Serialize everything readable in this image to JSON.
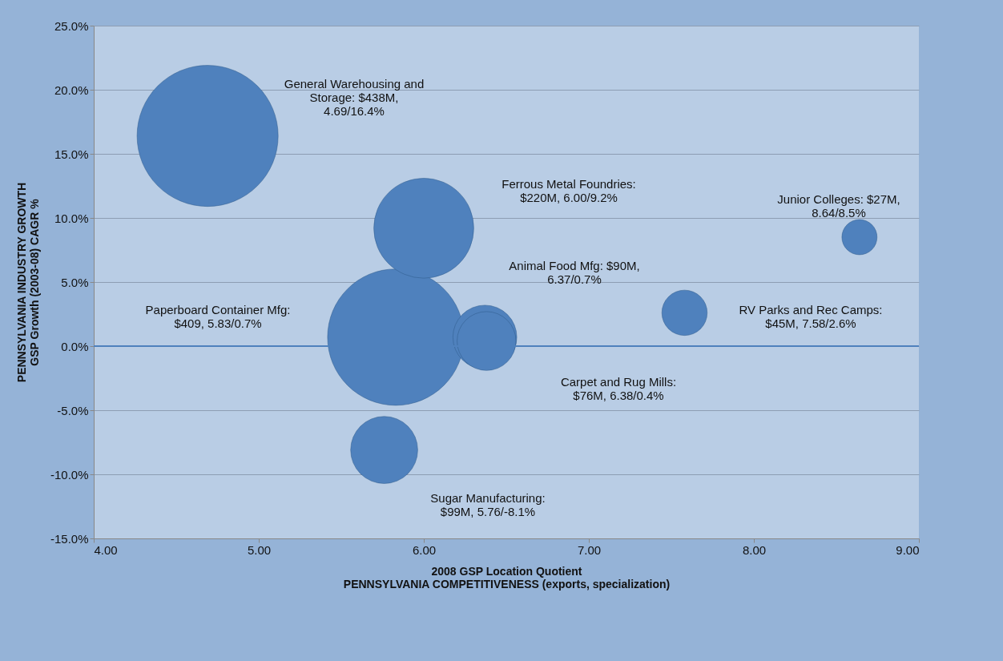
{
  "chart_data": {
    "type": "bubble",
    "xlabel": "2008 GSP Location Quotient\nPENNSYLVANIA COMPETITIVENESS (exports, specialization)",
    "ylabel": "PENNSYLVANIA INDUSTRY GROWTH\nGSP Growth (2003-08) CAGR %",
    "x": [
      4.69,
      5.83,
      6.0,
      5.76,
      6.37,
      6.38,
      7.58,
      8.64
    ],
    "values": [
      16.4,
      0.7,
      9.2,
      -8.1,
      0.7,
      0.4,
      2.6,
      8.5
    ],
    "sizes": [
      1,
      0.934,
      0.502,
      0.226,
      0.205,
      0.174,
      0.103,
      0.062
    ],
    "color": "#4f81bd",
    "xlim": [
      4,
      9
    ],
    "xticks": [
      {
        "value": 4,
        "label": "4.00"
      },
      {
        "value": 5,
        "label": "5.00"
      },
      {
        "value": 6,
        "label": "6.00"
      },
      {
        "value": 7,
        "label": "7.00"
      },
      {
        "value": 8,
        "label": "8.00"
      },
      {
        "value": 9,
        "label": "9.00"
      }
    ],
    "ylim": [
      -15,
      25
    ],
    "yticks": [
      {
        "value": -15,
        "label": "-15.0%"
      },
      {
        "value": -10,
        "label": "-10.0%"
      },
      {
        "value": -5,
        "label": "-5.0%"
      },
      {
        "value": 0,
        "label": "0.0%"
      },
      {
        "value": 5,
        "label": "5.0%"
      },
      {
        "value": 10,
        "label": "10.0%"
      },
      {
        "value": 15,
        "label": "15.0%"
      },
      {
        "value": 20,
        "label": "20.0%"
      },
      {
        "value": 25,
        "label": "25.0%"
      }
    ],
    "grid": "y",
    "ref_lines": [
      {
        "axis": "y",
        "value": 0,
        "color": "#4f81bd"
      }
    ],
    "annotations": [
      "General Warehousing and\nStorage: $438M,\n4.69/16.4%",
      "Paperboard Container Mfg:\n$409, 5.83/0.7%",
      "Ferrous Metal Foundries:\n$220M, 6.00/9.2%",
      "Sugar Manufacturing:\n$99M, 5.76/-8.1%",
      "Animal Food Mfg: $90M,\n6.37/0.7%",
      "Carpet and Rug Mills:\n$76M, 6.38/0.4%",
      "RV Parks and Rec Camps:\n$45M, 7.58/2.6%",
      "Junior Colleges: $27M,\n8.64/8.5%"
    ]
  }
}
